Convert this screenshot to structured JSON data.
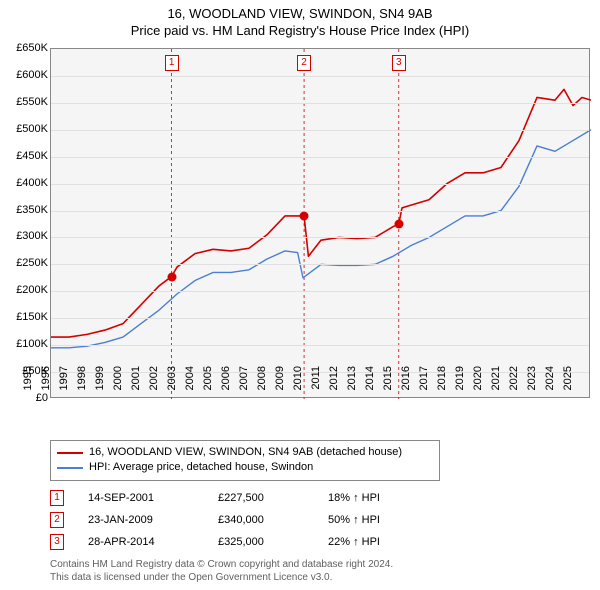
{
  "title": {
    "line1": "16, WOODLAND VIEW, SWINDON, SN4 9AB",
    "line2": "Price paid vs. HM Land Registry's House Price Index (HPI)",
    "fontsize": 13
  },
  "chart": {
    "type": "line",
    "background_color": "#f5f5f5",
    "grid_color": "#e0e0e0",
    "border_color": "#888888",
    "x": {
      "min": 1995,
      "max": 2025,
      "ticks": [
        1995,
        1996,
        1997,
        1998,
        1999,
        2000,
        2001,
        2002,
        2003,
        2004,
        2005,
        2006,
        2007,
        2008,
        2009,
        2010,
        2011,
        2012,
        2013,
        2014,
        2015,
        2016,
        2017,
        2018,
        2019,
        2020,
        2021,
        2022,
        2023,
        2024,
        2025
      ]
    },
    "y": {
      "min": 0,
      "max": 650000,
      "ticks": [
        0,
        50000,
        100000,
        150000,
        200000,
        250000,
        300000,
        350000,
        400000,
        450000,
        500000,
        550000,
        600000,
        650000
      ],
      "tick_labels": [
        "£0",
        "£50K",
        "£100K",
        "£150K",
        "£200K",
        "£250K",
        "£300K",
        "£350K",
        "£400K",
        "£450K",
        "£500K",
        "£550K",
        "£600K",
        "£650K"
      ]
    },
    "series": [
      {
        "name": "price_paid",
        "label": "16, WOODLAND VIEW, SWINDON, SN4 9AB (detached house)",
        "color": "#d40000",
        "width": 1.6,
        "x": [
          1995,
          1996,
          1997,
          1998,
          1999,
          2000,
          2001,
          2001.7,
          2002,
          2003,
          2004,
          2005,
          2006,
          2007,
          2008,
          2008.7,
          2009.06,
          2009.3,
          2010,
          2011,
          2012,
          2013,
          2014,
          2014.32,
          2014.5,
          2015,
          2016,
          2017,
          2018,
          2019,
          2020,
          2021,
          2022,
          2023,
          2023.5,
          2024,
          2024.5,
          2025
        ],
        "y": [
          115000,
          115000,
          120000,
          128000,
          140000,
          175000,
          210000,
          227500,
          245000,
          270000,
          278000,
          275000,
          280000,
          305000,
          340000,
          340000,
          340000,
          265000,
          295000,
          300000,
          298000,
          300000,
          320000,
          325000,
          355000,
          360000,
          370000,
          400000,
          420000,
          420000,
          430000,
          480000,
          560000,
          555000,
          575000,
          545000,
          560000,
          555000
        ]
      },
      {
        "name": "hpi",
        "label": "HPI: Average price, detached house, Swindon",
        "color": "#4a7fd4",
        "width": 1.4,
        "x": [
          1995,
          1996,
          1997,
          1998,
          1999,
          2000,
          2001,
          2002,
          2003,
          2004,
          2005,
          2006,
          2007,
          2008,
          2008.7,
          2009,
          2010,
          2011,
          2012,
          2013,
          2014,
          2015,
          2016,
          2017,
          2018,
          2019,
          2020,
          2021,
          2022,
          2023,
          2024,
          2025
        ],
        "y": [
          95000,
          95000,
          98000,
          105000,
          115000,
          140000,
          165000,
          195000,
          220000,
          235000,
          235000,
          240000,
          260000,
          275000,
          272000,
          225000,
          250000,
          248000,
          248000,
          250000,
          265000,
          285000,
          300000,
          320000,
          340000,
          340000,
          350000,
          395000,
          470000,
          460000,
          480000,
          500000
        ]
      }
    ],
    "markers": [
      {
        "num": "1",
        "x": 2001.7,
        "y": 227500,
        "color": "#d40000"
      },
      {
        "num": "2",
        "x": 2009.06,
        "y": 340000,
        "color": "#d40000"
      },
      {
        "num": "3",
        "x": 2014.32,
        "y": 325000,
        "color": "#d40000"
      }
    ]
  },
  "legend": {
    "border_color": "#888888"
  },
  "sales": [
    {
      "num": "1",
      "date": "14-SEP-2001",
      "price": "£227,500",
      "hpi": "18% ↑ HPI",
      "color": "#d40000"
    },
    {
      "num": "2",
      "date": "23-JAN-2009",
      "price": "£340,000",
      "hpi": "50% ↑ HPI",
      "color": "#d40000"
    },
    {
      "num": "3",
      "date": "28-APR-2014",
      "price": "£325,000",
      "hpi": "22% ↑ HPI",
      "color": "#d40000"
    }
  ],
  "footer": {
    "line1": "Contains HM Land Registry data © Crown copyright and database right 2024.",
    "line2": "This data is licensed under the Open Government Licence v3.0.",
    "color": "#606060"
  }
}
